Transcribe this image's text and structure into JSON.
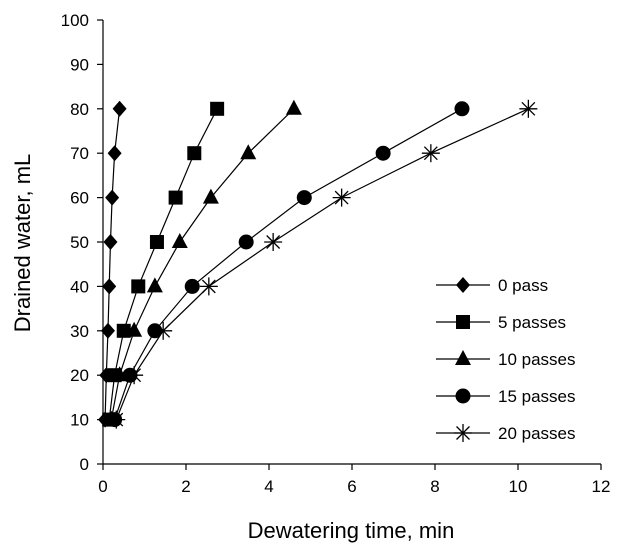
{
  "chart_data": {
    "type": "scatter",
    "title": "",
    "xlabel": "Dewatering time, min",
    "ylabel": "Drained water, mL",
    "xlim": [
      0,
      12
    ],
    "ylim": [
      0,
      100
    ],
    "xticks": [
      0,
      2,
      4,
      6,
      8,
      10,
      12
    ],
    "yticks": [
      0,
      10,
      20,
      30,
      40,
      50,
      60,
      70,
      80,
      90,
      100
    ],
    "grid": false,
    "legend_position": "right",
    "series": [
      {
        "name": "0 pass",
        "marker": "diamond",
        "x": [
          0.05,
          0.08,
          0.12,
          0.15,
          0.18,
          0.22,
          0.28,
          0.4
        ],
        "y": [
          10,
          20,
          30,
          40,
          50,
          60,
          70,
          80
        ]
      },
      {
        "name": "5 passes",
        "marker": "square",
        "x": [
          0.15,
          0.28,
          0.5,
          0.85,
          1.3,
          1.75,
          2.2,
          2.75
        ],
        "y": [
          10,
          20,
          30,
          40,
          50,
          60,
          70,
          80
        ]
      },
      {
        "name": "10 passes",
        "marker": "triangle",
        "x": [
          0.2,
          0.4,
          0.75,
          1.25,
          1.85,
          2.6,
          3.5,
          4.6
        ],
        "y": [
          10,
          20,
          30,
          40,
          50,
          60,
          70,
          80
        ]
      },
      {
        "name": "15 passes",
        "marker": "circle",
        "x": [
          0.28,
          0.65,
          1.25,
          2.15,
          3.45,
          4.85,
          6.75,
          8.65
        ],
        "y": [
          10,
          20,
          30,
          40,
          50,
          60,
          70,
          80
        ]
      },
      {
        "name": "20 passes",
        "marker": "asterisk",
        "x": [
          0.32,
          0.75,
          1.45,
          2.55,
          4.1,
          5.75,
          7.9,
          10.25
        ],
        "y": [
          10,
          20,
          30,
          40,
          50,
          60,
          70,
          80
        ]
      }
    ]
  }
}
